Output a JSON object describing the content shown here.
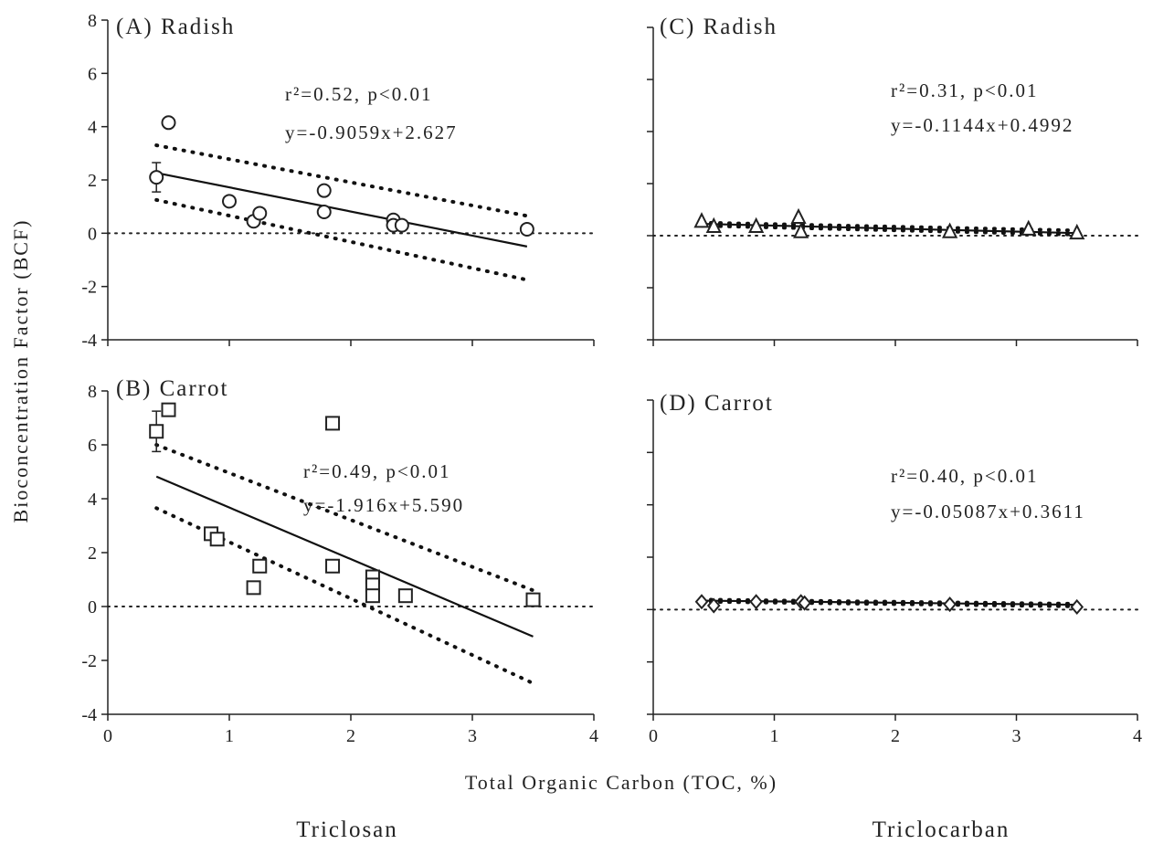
{
  "chart_data": {
    "type": "scatter",
    "ylabel": "Bioconcentration Factor (BCF)",
    "xlabel": "Total Organic Carbon (TOC, %)",
    "group_labels": [
      "Triclosan",
      "Triclocarban"
    ],
    "x_ticks": [
      "0",
      "1",
      "2",
      "3",
      "4"
    ],
    "y_ticks": [
      "8",
      "6",
      "4",
      "2",
      "0",
      "-2",
      "-4"
    ],
    "panels": [
      {
        "id": "A",
        "label": "(A) Radish",
        "marker": "circle",
        "show_y_tick_labels": true,
        "show_x_tick_labels": false,
        "xlim": [
          0,
          4
        ],
        "ylim": [
          -4,
          8
        ],
        "r2_text": "r²=0.52, p<0.01",
        "equation": "y=-0.9059x+2.627",
        "fit": {
          "slope": -0.9059,
          "intercept": 2.627,
          "x_range": [
            0.4,
            3.45
          ]
        },
        "confidence_band": {
          "upper": [
            [
              0.4,
              3.3
            ],
            [
              3.45,
              0.65
            ]
          ],
          "lower": [
            [
              0.4,
              1.25
            ],
            [
              3.45,
              -1.75
            ]
          ]
        },
        "points": [
          {
            "x": 0.4,
            "y": 2.1,
            "err": 0.55
          },
          {
            "x": 0.5,
            "y": 4.15
          },
          {
            "x": 1.0,
            "y": 1.2
          },
          {
            "x": 1.2,
            "y": 0.45
          },
          {
            "x": 1.25,
            "y": 0.75
          },
          {
            "x": 1.78,
            "y": 1.6
          },
          {
            "x": 1.78,
            "y": 0.8
          },
          {
            "x": 2.35,
            "y": 0.5
          },
          {
            "x": 2.35,
            "y": 0.3
          },
          {
            "x": 2.42,
            "y": 0.3
          },
          {
            "x": 3.45,
            "y": 0.15
          }
        ]
      },
      {
        "id": "B",
        "label": "(B) Carrot",
        "marker": "square",
        "show_y_tick_labels": true,
        "show_x_tick_labels": true,
        "xlim": [
          0,
          4
        ],
        "ylim": [
          -4,
          8
        ],
        "r2_text": "r²=0.49, p<0.01",
        "equation": "y=-1.916x+5.590",
        "fit": {
          "slope": -1.916,
          "intercept": 5.59,
          "x_range": [
            0.4,
            3.5
          ]
        },
        "confidence_band": {
          "upper": [
            [
              0.4,
              6.0
            ],
            [
              3.5,
              0.6
            ]
          ],
          "lower": [
            [
              0.4,
              3.65
            ],
            [
              3.5,
              -2.85
            ]
          ]
        },
        "points": [
          {
            "x": 0.4,
            "y": 6.5,
            "err": 0.75
          },
          {
            "x": 0.5,
            "y": 7.3
          },
          {
            "x": 0.85,
            "y": 2.7
          },
          {
            "x": 0.9,
            "y": 2.5
          },
          {
            "x": 1.2,
            "y": 0.7
          },
          {
            "x": 1.25,
            "y": 1.5
          },
          {
            "x": 1.85,
            "y": 6.8
          },
          {
            "x": 1.85,
            "y": 1.5
          },
          {
            "x": 2.18,
            "y": 1.1
          },
          {
            "x": 2.18,
            "y": 0.8
          },
          {
            "x": 2.18,
            "y": 0.4
          },
          {
            "x": 2.45,
            "y": 0.4
          },
          {
            "x": 3.5,
            "y": 0.25
          }
        ]
      },
      {
        "id": "C",
        "label": "(C) Radish",
        "marker": "triangle",
        "show_y_tick_labels": false,
        "show_x_tick_labels": false,
        "xlim": [
          0,
          4
        ],
        "ylim": [
          -4,
          8
        ],
        "r2_text": "r²=0.31, p<0.01",
        "equation": "y=-0.1144x+0.4992",
        "fit": {
          "slope": -0.1144,
          "intercept": 0.4992,
          "x_range": [
            0.4,
            3.5
          ]
        },
        "confidence_band": {
          "upper": [
            [
              0.4,
              0.5
            ],
            [
              3.5,
              0.2
            ]
          ],
          "lower": [
            [
              0.4,
              0.38
            ],
            [
              3.5,
              0.04
            ]
          ]
        },
        "points": [
          {
            "x": 0.4,
            "y": 0.55
          },
          {
            "x": 0.5,
            "y": 0.35
          },
          {
            "x": 0.85,
            "y": 0.35
          },
          {
            "x": 1.2,
            "y": 0.7
          },
          {
            "x": 1.22,
            "y": 0.15
          },
          {
            "x": 2.45,
            "y": 0.15
          },
          {
            "x": 3.1,
            "y": 0.25
          },
          {
            "x": 3.5,
            "y": 0.1
          }
        ]
      },
      {
        "id": "D",
        "label": "(D) Carrot",
        "marker": "diamond",
        "show_y_tick_labels": false,
        "show_x_tick_labels": true,
        "xlim": [
          0,
          4
        ],
        "ylim": [
          -4,
          8
        ],
        "r2_text": "r²=0.40, p<0.01",
        "equation": "y=-0.05087x+0.3611",
        "fit": {
          "slope": -0.05087,
          "intercept": 0.3611,
          "x_range": [
            0.4,
            3.5
          ]
        },
        "confidence_band": {
          "upper": [
            [
              0.4,
              0.38
            ],
            [
              3.5,
              0.22
            ]
          ],
          "lower": [
            [
              0.4,
              0.3
            ],
            [
              3.5,
              0.12
            ]
          ]
        },
        "points": [
          {
            "x": 0.4,
            "y": 0.3
          },
          {
            "x": 0.5,
            "y": 0.15
          },
          {
            "x": 0.85,
            "y": 0.3
          },
          {
            "x": 1.22,
            "y": 0.3
          },
          {
            "x": 1.25,
            "y": 0.25
          },
          {
            "x": 2.45,
            "y": 0.2
          },
          {
            "x": 3.5,
            "y": 0.1
          }
        ]
      }
    ]
  }
}
